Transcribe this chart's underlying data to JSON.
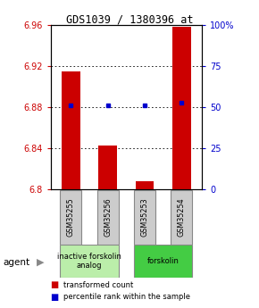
{
  "title": "GDS1039 / 1380396_at",
  "samples": [
    "GSM35255",
    "GSM35256",
    "GSM35253",
    "GSM35254"
  ],
  "bar_values": [
    6.915,
    6.843,
    6.808,
    6.958
  ],
  "bar_baseline": 6.8,
  "blue_values": [
    6.882,
    6.882,
    6.882,
    6.884
  ],
  "ylim_left": [
    6.8,
    6.96
  ],
  "ylim_right": [
    0,
    100
  ],
  "yticks_left": [
    6.8,
    6.84,
    6.88,
    6.92,
    6.96
  ],
  "yticks_right": [
    0,
    25,
    50,
    75,
    100
  ],
  "ytick_labels_left": [
    "6.8",
    "6.84",
    "6.88",
    "6.92",
    "6.96"
  ],
  "ytick_labels_right": [
    "0",
    "25",
    "50",
    "75",
    "100%"
  ],
  "bar_color": "#cc0000",
  "blue_color": "#0000cc",
  "groups": [
    {
      "label": "inactive forskolin\nanalog",
      "samples": [
        0,
        1
      ],
      "color": "#bbeeaa"
    },
    {
      "label": "forskolin",
      "samples": [
        2,
        3
      ],
      "color": "#44cc44"
    }
  ],
  "agent_label": "agent",
  "legend_items": [
    {
      "color": "#cc0000",
      "label": "transformed count"
    },
    {
      "color": "#0000cc",
      "label": "percentile rank within the sample"
    }
  ],
  "bar_width": 0.5,
  "xlabel_color": "#cc0000",
  "ylabel_right_color": "#0000cc",
  "title_color": "#000000",
  "gray_box_color": "#cccccc",
  "gray_border_color": "#888888"
}
